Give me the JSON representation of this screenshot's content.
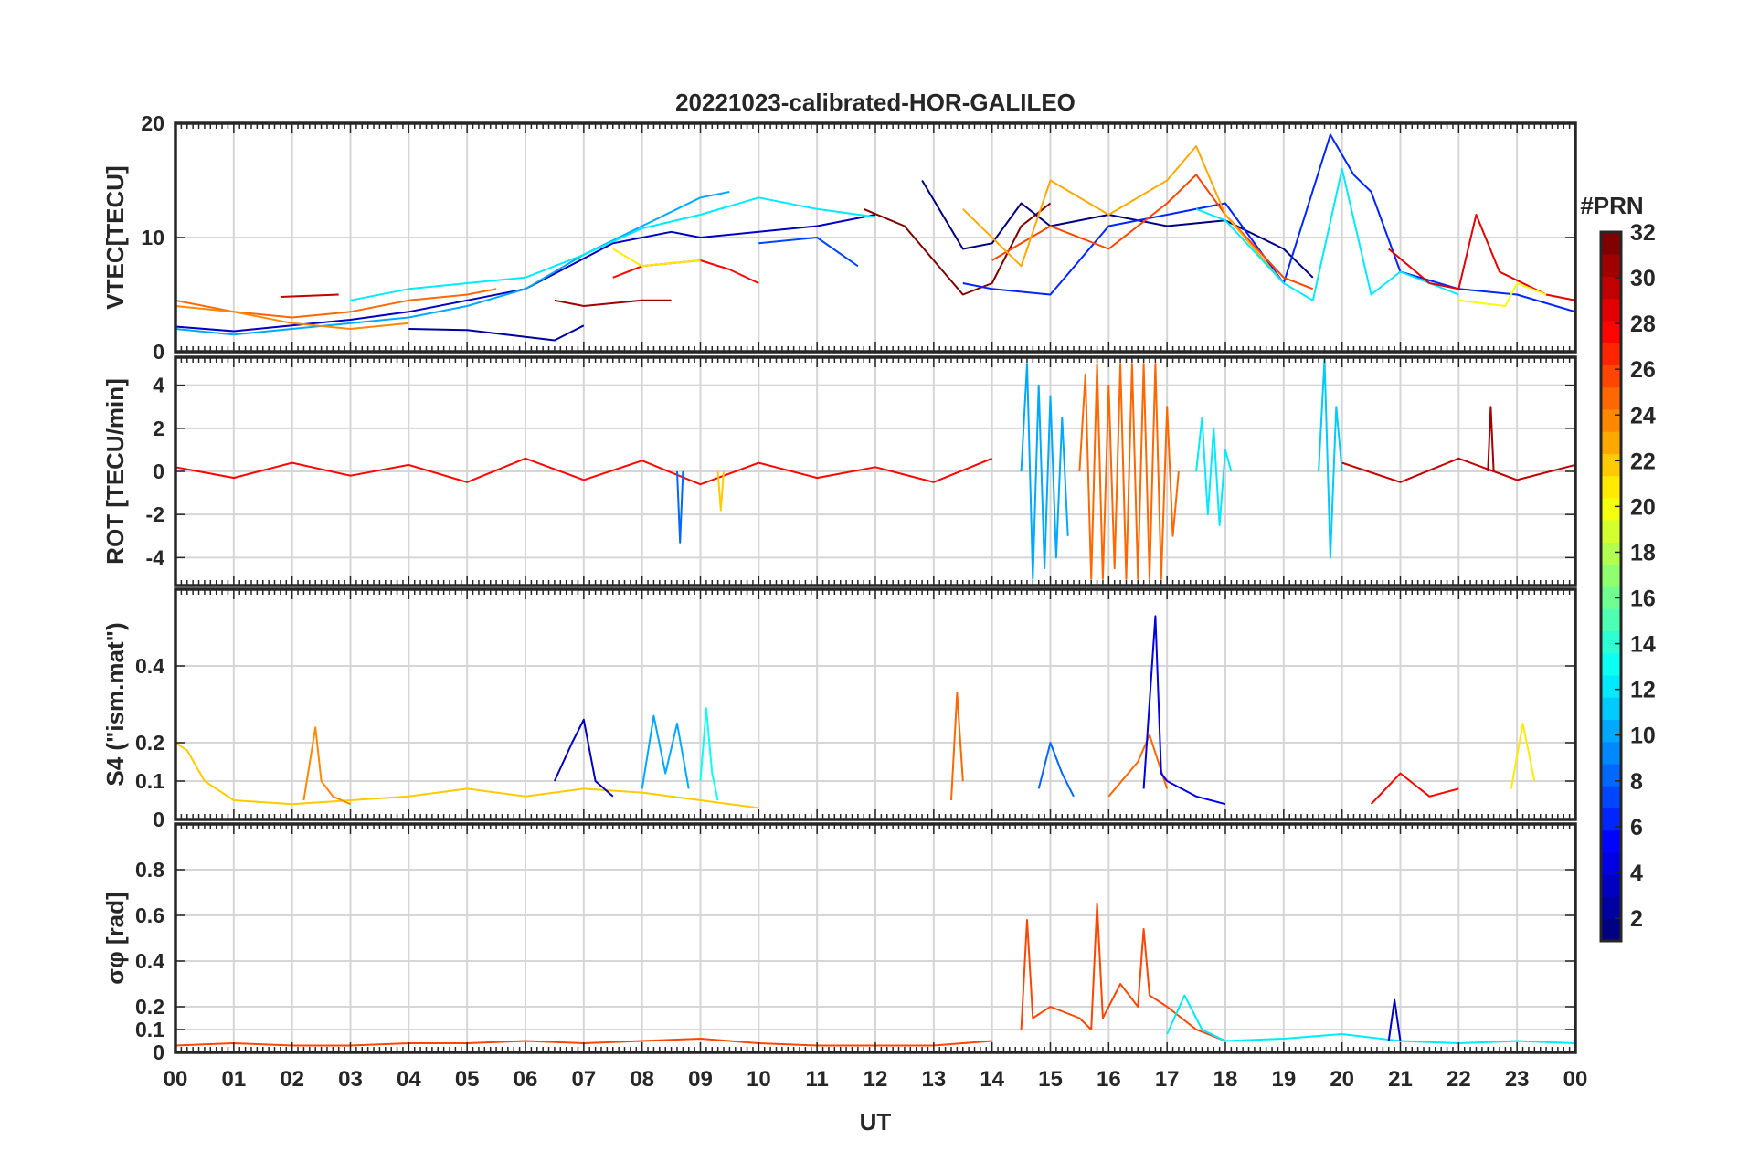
{
  "chart_data": {
    "type": "line",
    "title": "20221023-calibrated-HOR-GALILEO",
    "xlabel": "UT",
    "x_ticks": [
      "00",
      "01",
      "02",
      "03",
      "04",
      "05",
      "06",
      "07",
      "08",
      "09",
      "10",
      "11",
      "12",
      "13",
      "14",
      "15",
      "16",
      "17",
      "18",
      "19",
      "20",
      "21",
      "22",
      "23",
      "00"
    ],
    "xlim": [
      0,
      24
    ],
    "grid": true,
    "colorbar": {
      "label": "#PRN",
      "colormap": "jet",
      "range": [
        1,
        32
      ],
      "ticks": [
        "2",
        "4",
        "6",
        "8",
        "10",
        "12",
        "14",
        "16",
        "18",
        "20",
        "22",
        "24",
        "26",
        "28",
        "30",
        "32"
      ]
    },
    "panels": [
      {
        "id": "vtec",
        "ylabel": "VTEC[TECU]",
        "ylim": [
          0,
          20
        ],
        "y_ticks": [
          0,
          10,
          20
        ],
        "series": [
          {
            "prn": 3,
            "x": [
              0.0,
              1.0,
              2.0,
              3.0,
              4.0,
              5.0,
              6.0,
              7.5,
              8.5,
              9.0,
              10.0,
              11.0,
              12.0
            ],
            "y": [
              2.2,
              1.8,
              2.3,
              2.8,
              3.5,
              4.5,
              5.5,
              9.5,
              10.5,
              10.0,
              10.5,
              11.0,
              12.0
            ]
          },
          {
            "prn": 10,
            "x": [
              0.0,
              1.0,
              2.0,
              3.0,
              4.0,
              5.0,
              6.0,
              7.0,
              8.0,
              9.0,
              9.5
            ],
            "y": [
              2.0,
              1.5,
              2.0,
              2.5,
              3.0,
              4.0,
              5.5,
              8.5,
              11.0,
              13.5,
              14.0
            ]
          },
          {
            "prn": 12,
            "x": [
              3.0,
              4.0,
              5.0,
              6.0,
              7.0,
              8.0,
              9.0,
              10.0,
              11.0,
              12.0
            ],
            "y": [
              4.5,
              5.5,
              6.0,
              6.5,
              8.5,
              10.8,
              12.0,
              13.5,
              12.5,
              11.8
            ]
          },
          {
            "prn": 2,
            "x": [
              4.0,
              5.0,
              6.0,
              6.5,
              7.0
            ],
            "y": [
              2.0,
              1.9,
              1.3,
              1.0,
              2.3
            ]
          },
          {
            "prn": 25,
            "x": [
              0.0,
              1.0,
              2.0,
              3.0,
              4.0,
              5.0,
              5.5
            ],
            "y": [
              4.5,
              3.5,
              3.0,
              3.5,
              4.5,
              5.0,
              5.5
            ]
          },
          {
            "prn": 24,
            "x": [
              0.0,
              1.0,
              2.0,
              3.0,
              4.0
            ],
            "y": [
              4.0,
              3.5,
              2.5,
              2.0,
              2.5
            ]
          },
          {
            "prn": 30,
            "x": [
              1.8,
              2.8
            ],
            "y": [
              4.8,
              5.0
            ]
          },
          {
            "prn": 31,
            "x": [
              6.5,
              7.0,
              8.0,
              8.5
            ],
            "y": [
              4.5,
              4.0,
              4.5,
              4.5
            ]
          },
          {
            "prn": 28,
            "x": [
              7.5,
              8.0,
              9.0,
              9.5,
              10.0
            ],
            "y": [
              6.5,
              7.5,
              8.0,
              7.2,
              6.0
            ]
          },
          {
            "prn": 21,
            "x": [
              7.5,
              8.0,
              9.0
            ],
            "y": [
              9.0,
              7.5,
              8.0
            ]
          },
          {
            "prn": 7,
            "x": [
              10.0,
              11.0,
              11.7
            ],
            "y": [
              9.5,
              10.0,
              7.5
            ]
          },
          {
            "prn": 32,
            "x": [
              11.8,
              12.5,
              13.0,
              13.5,
              14.0,
              14.5,
              15.0
            ],
            "y": [
              12.5,
              11.0,
              8.0,
              5.0,
              6.0,
              11.0,
              13.0
            ]
          },
          {
            "prn": 1,
            "x": [
              12.8,
              13.5,
              14.0,
              14.5,
              15.0,
              16.0,
              17.0,
              18.0,
              19.0,
              19.5
            ],
            "y": [
              15.0,
              9.0,
              9.5,
              13.0,
              11.0,
              12.0,
              11.0,
              11.5,
              9.0,
              6.5
            ]
          },
          {
            "prn": 6,
            "x": [
              13.5,
              14.0,
              15.0,
              16.0,
              17.0,
              18.0,
              19.0,
              19.8,
              20.2,
              20.5,
              21.0,
              22.0,
              23.0,
              24.0
            ],
            "y": [
              6.0,
              5.5,
              5.0,
              11.0,
              12.0,
              13.0,
              6.0,
              19.0,
              15.5,
              14.0,
              7.0,
              5.5,
              5.0,
              3.5
            ]
          },
          {
            "prn": 26,
            "x": [
              14.0,
              15.0,
              16.0,
              17.0,
              17.5,
              18.0,
              19.0,
              19.5
            ],
            "y": [
              8.0,
              11.0,
              9.0,
              13.0,
              15.5,
              12.0,
              6.5,
              5.5
            ]
          },
          {
            "prn": 23,
            "x": [
              13.5,
              14.5,
              15.0,
              16.0,
              17.0,
              17.5,
              18.0,
              19.0
            ],
            "y": [
              12.5,
              7.5,
              15.0,
              12.0,
              15.0,
              18.0,
              12.0,
              6.0
            ]
          },
          {
            "prn": 12,
            "x": [
              17.5,
              18.0,
              19.0,
              19.5,
              20.0,
              20.5,
              21.0,
              22.0
            ],
            "y": [
              12.5,
              11.5,
              6.0,
              4.5,
              16.0,
              5.0,
              7.0,
              5.0
            ]
          },
          {
            "prn": 29,
            "x": [
              20.8,
              21.5,
              22.0,
              22.3,
              22.7,
              23.5,
              24.0
            ],
            "y": [
              9.0,
              6.0,
              5.5,
              12.0,
              7.0,
              5.0,
              4.5
            ]
          },
          {
            "prn": 20,
            "x": [
              22.0,
              22.8,
              23.0,
              23.5
            ],
            "y": [
              4.5,
              4.0,
              6.0,
              5.0
            ]
          }
        ]
      },
      {
        "id": "rot",
        "ylabel": "ROT [TECU/min]",
        "ylim": [
          -5.3,
          5.3
        ],
        "y_ticks": [
          -4,
          -2,
          0,
          2,
          4
        ],
        "summary": "ROT near ±0.5 TECU/min from 00 to 14 UT and after 18 UT; strong fluctuations reaching ±5 TECU/min between 14.5 and 17.5 UT; spikes near 19.5–20.2 UT up to ~5 and down to ~-4.",
        "series": [
          {
            "prn": 28,
            "x": [
              0.0,
              1.0,
              2.0,
              3.0,
              4.0,
              5.0,
              6.0,
              7.0,
              8.0,
              9.0,
              10.0,
              11.0,
              12.0,
              13.0,
              14.0
            ],
            "y": [
              0.2,
              -0.3,
              0.4,
              -0.2,
              0.3,
              -0.5,
              0.6,
              -0.4,
              0.5,
              -0.6,
              0.4,
              -0.3,
              0.2,
              -0.5,
              0.6
            ]
          },
          {
            "prn": 8,
            "x": [
              8.6,
              8.65,
              8.7
            ],
            "y": [
              0.0,
              -3.3,
              0.0
            ]
          },
          {
            "prn": 22,
            "x": [
              9.3,
              9.35,
              9.4
            ],
            "y": [
              0.0,
              -1.8,
              0.0
            ]
          },
          {
            "prn": 10,
            "x": [
              14.5,
              14.6,
              14.7,
              14.8,
              14.9,
              15.0,
              15.1,
              15.2,
              15.3
            ],
            "y": [
              0.0,
              5.0,
              -5.0,
              4.0,
              -4.5,
              3.5,
              -4.0,
              2.5,
              -3.0
            ]
          },
          {
            "prn": 25,
            "x": [
              15.5,
              15.6,
              15.7,
              15.8,
              15.9,
              16.0,
              16.1,
              16.2,
              16.3,
              16.4,
              16.5,
              16.6,
              16.7,
              16.8,
              16.9,
              17.0,
              17.1,
              17.2
            ],
            "y": [
              0.0,
              4.5,
              -5.0,
              5.0,
              -5.0,
              4.0,
              -4.5,
              5.0,
              -5.0,
              5.0,
              -5.0,
              5.0,
              -5.0,
              5.0,
              -5.0,
              3.0,
              -3.0,
              0.0
            ]
          },
          {
            "prn": 12,
            "x": [
              17.5,
              17.6,
              17.7,
              17.8,
              17.9,
              18.0,
              18.1
            ],
            "y": [
              0.0,
              2.5,
              -2.0,
              2.0,
              -2.5,
              1.0,
              0.0
            ]
          },
          {
            "prn": 11,
            "x": [
              19.6,
              19.7,
              19.8,
              19.9,
              20.0
            ],
            "y": [
              0.0,
              5.2,
              -4.0,
              3.0,
              0.0
            ]
          },
          {
            "prn": 30,
            "x": [
              20.0,
              21.0,
              22.0,
              23.0,
              24.0
            ],
            "y": [
              0.4,
              -0.5,
              0.6,
              -0.4,
              0.3
            ]
          },
          {
            "prn": 31,
            "x": [
              22.5,
              22.55,
              22.6
            ],
            "y": [
              0.0,
              3.0,
              0.0
            ]
          }
        ]
      },
      {
        "id": "s4",
        "ylabel": "S4 (\"ism.mat\")",
        "ylim": [
          0,
          0.6
        ],
        "y_ticks": [
          0,
          0.1,
          0.2,
          0.4
        ],
        "summary": "S4 mostly 0.02–0.15; peaks ~0.25 near 02.4, 07.0, 08.2–08.6, 09.1 UT; 0.33 near 13.4 UT; maximum ~0.53 near 16.8 UT; ~0.25 near 23.1 UT.",
        "series": [
          {
            "prn": 22,
            "x": [
              0.0,
              0.2,
              0.5,
              1.0,
              2.0,
              3.0,
              4.0,
              5.0,
              6.0,
              7.0,
              8.0,
              9.0,
              10.0
            ],
            "y": [
              0.2,
              0.18,
              0.1,
              0.05,
              0.04,
              0.05,
              0.06,
              0.08,
              0.06,
              0.08,
              0.07,
              0.05,
              0.03
            ]
          },
          {
            "prn": 24,
            "x": [
              2.2,
              2.4,
              2.5,
              2.7,
              3.0
            ],
            "y": [
              0.05,
              0.24,
              0.1,
              0.06,
              0.04
            ]
          },
          {
            "prn": 3,
            "x": [
              6.5,
              6.8,
              7.0,
              7.2,
              7.5
            ],
            "y": [
              0.1,
              0.2,
              0.26,
              0.1,
              0.06
            ]
          },
          {
            "prn": 10,
            "x": [
              8.0,
              8.2,
              8.4,
              8.6,
              8.8
            ],
            "y": [
              0.08,
              0.27,
              0.12,
              0.25,
              0.08
            ]
          },
          {
            "prn": 13,
            "x": [
              9.0,
              9.1,
              9.2,
              9.3
            ],
            "y": [
              0.1,
              0.29,
              0.12,
              0.05
            ]
          },
          {
            "prn": 25,
            "x": [
              13.3,
              13.4,
              13.5
            ],
            "y": [
              0.05,
              0.33,
              0.1
            ]
          },
          {
            "prn": 8,
            "x": [
              14.8,
              15.0,
              15.2,
              15.4
            ],
            "y": [
              0.08,
              0.2,
              0.12,
              0.06
            ]
          },
          {
            "prn": 25,
            "x": [
              16.0,
              16.5,
              16.7,
              17.0
            ],
            "y": [
              0.06,
              0.15,
              0.22,
              0.08
            ]
          },
          {
            "prn": 4,
            "x": [
              16.6,
              16.8,
              16.9,
              17.0,
              17.5,
              18.0
            ],
            "y": [
              0.08,
              0.53,
              0.12,
              0.1,
              0.06,
              0.04
            ]
          },
          {
            "prn": 28,
            "x": [
              20.5,
              21.0,
              21.5,
              22.0
            ],
            "y": [
              0.04,
              0.12,
              0.06,
              0.08
            ]
          },
          {
            "prn": 21,
            "x": [
              22.9,
              23.1,
              23.3
            ],
            "y": [
              0.08,
              0.25,
              0.1
            ]
          }
        ]
      },
      {
        "id": "sigma",
        "ylabel": "σφ [rad]",
        "ylim": [
          0,
          1.0
        ],
        "y_ticks": [
          0,
          0.1,
          0.2,
          0.4,
          0.6,
          0.8
        ],
        "summary": "Phase scintillation σφ near 0.03–0.05 rad outside 14–18 UT; peaks 0.58 near 14.6 UT, 0.65 near 15.8 UT, 0.54 near 16.6 UT; secondary ~0.2 near 20.9 UT.",
        "series": [
          {
            "prn": 26,
            "x": [
              0.0,
              1.0,
              2.0,
              3.0,
              4.0,
              5.0,
              6.0,
              7.0,
              8.0,
              9.0,
              10.0,
              11.0,
              12.0,
              13.0,
              14.0
            ],
            "y": [
              0.03,
              0.04,
              0.03,
              0.03,
              0.04,
              0.04,
              0.05,
              0.04,
              0.05,
              0.06,
              0.04,
              0.03,
              0.03,
              0.03,
              0.05
            ]
          },
          {
            "prn": 26,
            "x": [
              14.5,
              14.6,
              14.7,
              15.0,
              15.5,
              15.7,
              15.8,
              15.9,
              16.2,
              16.5,
              16.6,
              16.7,
              17.0,
              17.5,
              18.0
            ],
            "y": [
              0.1,
              0.58,
              0.15,
              0.2,
              0.15,
              0.1,
              0.65,
              0.15,
              0.3,
              0.2,
              0.54,
              0.25,
              0.2,
              0.1,
              0.05
            ]
          },
          {
            "prn": 12,
            "x": [
              17.0,
              17.3,
              17.6,
              18.0,
              19.0,
              20.0,
              21.0,
              22.0,
              23.0,
              24.0
            ],
            "y": [
              0.08,
              0.25,
              0.1,
              0.05,
              0.06,
              0.08,
              0.05,
              0.04,
              0.05,
              0.04
            ]
          },
          {
            "prn": 3,
            "x": [
              20.8,
              20.9,
              21.0
            ],
            "y": [
              0.05,
              0.23,
              0.05
            ]
          }
        ]
      }
    ]
  }
}
